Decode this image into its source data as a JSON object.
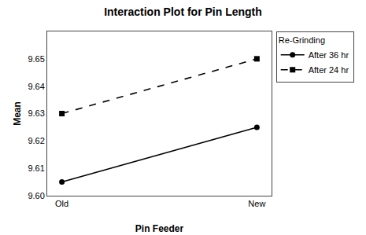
{
  "chart_data": {
    "type": "line",
    "title": "Interaction Plot for Pin Length",
    "x_label": "Pin Feeder",
    "y_label": "Mean",
    "categories": [
      "Old",
      "New"
    ],
    "series": [
      {
        "name": "After 36 hr",
        "values": [
          9.605,
          9.625
        ],
        "color": "#000000",
        "line_style": "solid",
        "marker": "circle"
      },
      {
        "name": "After 24 hr",
        "values": [
          9.63,
          9.65
        ],
        "color": "#000000",
        "line_style": "dashed",
        "marker": "square"
      }
    ],
    "legend_title": "Re-Grinding",
    "legend": "right",
    "ylim": [
      9.6,
      9.66
    ],
    "yticks": [
      {
        "value": 9.6,
        "label": "9.60"
      },
      9.61,
      9.62,
      9.63,
      9.64,
      9.65
    ],
    "grid": false
  }
}
